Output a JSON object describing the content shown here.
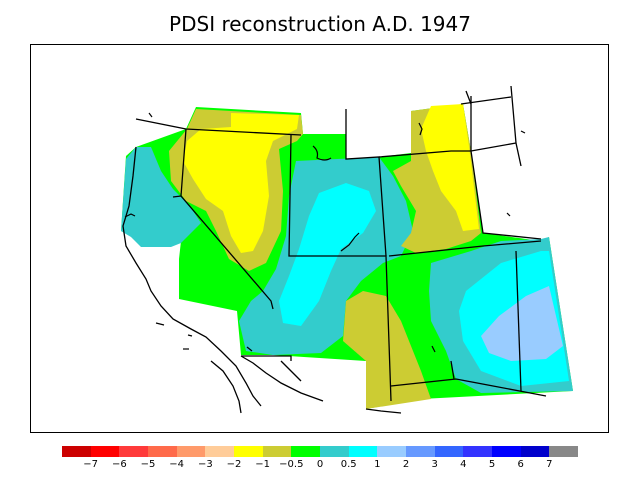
{
  "title": "PDSI reconstruction A.D. 1947",
  "legend": {
    "colors": [
      "#cc0000",
      "#ff0000",
      "#ff3a3a",
      "#ff6a4a",
      "#ff9a6a",
      "#ffcc99",
      "#ffff00",
      "#cccc33",
      "#00ff00",
      "#33cccc",
      "#00ffff",
      "#99ccff",
      "#6699ff",
      "#3366ff",
      "#3333ff",
      "#0000ff",
      "#0000cc",
      "#888888"
    ],
    "ticks": [
      "−7",
      "−6",
      "−5",
      "−4",
      "−3",
      "−2",
      "−1",
      "−0.5",
      "0",
      "0.5",
      "1",
      "2",
      "3",
      "4",
      "5",
      "6",
      "7"
    ]
  },
  "map": {
    "region": "western United States",
    "palette": {
      "yellow": "#ffff00",
      "olive": "#cccc33",
      "green": "#00ff00",
      "teal": "#33cccc",
      "cyan": "#00ffff",
      "lightblue": "#99ccff"
    }
  }
}
